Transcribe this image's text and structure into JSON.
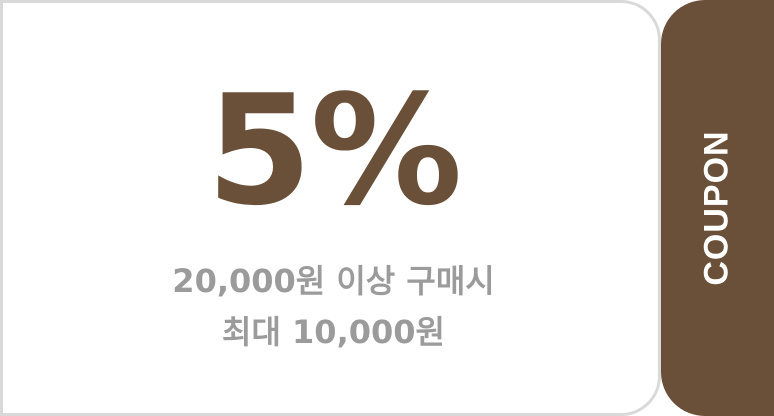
{
  "coupon": {
    "discount": "5%",
    "condition_line1": "20,000원 이상 구매시",
    "condition_line2": "최대 10,000원",
    "tab_label": "COUPON"
  },
  "colors": {
    "accent": "#6b5039",
    "text_muted": "#9b9b9b",
    "border": "#d9d9d9",
    "background": "#ffffff"
  }
}
